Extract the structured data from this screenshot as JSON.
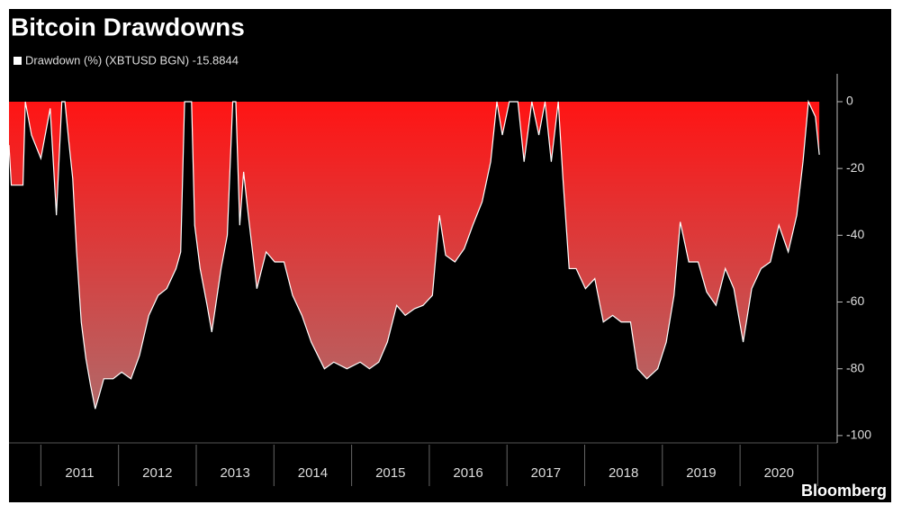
{
  "chart_data": {
    "type": "area",
    "title": "Bitcoin Drawdowns",
    "source": "Bloomberg",
    "categories": [
      "2011",
      "2012",
      "2013",
      "2014",
      "2015",
      "2016",
      "2017",
      "2018",
      "2019",
      "2020"
    ],
    "xlim": [
      2010.59,
      2021.25
    ],
    "xticks": [
      2011,
      2012,
      2013,
      2014,
      2015,
      2016,
      2017,
      2018,
      2019,
      2020,
      2021
    ],
    "ylim": [
      -103,
      8
    ],
    "yticks": [
      0,
      -20,
      -40,
      -60,
      -80,
      -100
    ],
    "x": [
      2010.59,
      2010.62,
      2010.77,
      2010.8,
      2010.88,
      2011.0,
      2011.12,
      2011.2,
      2011.27,
      2011.31,
      2011.36,
      2011.41,
      2011.46,
      2011.52,
      2011.58,
      2011.64,
      2011.7,
      2011.75,
      2011.81,
      2011.93,
      2012.04,
      2012.16,
      2012.27,
      2012.39,
      2012.51,
      2012.62,
      2012.74,
      2012.8,
      2012.85,
      2012.94,
      2012.98,
      2013.05,
      2013.14,
      2013.2,
      2013.32,
      2013.4,
      2013.47,
      2013.51,
      2013.56,
      2013.61,
      2013.67,
      2013.78,
      2013.9,
      2014.01,
      2014.13,
      2014.24,
      2014.36,
      2014.48,
      2014.65,
      2014.77,
      2014.94,
      2015.11,
      2015.23,
      2015.35,
      2015.46,
      2015.58,
      2015.69,
      2015.81,
      2015.92,
      2016.04,
      2016.13,
      2016.21,
      2016.33,
      2016.45,
      2016.56,
      2016.68,
      2016.79,
      2016.87,
      2016.94,
      2017.03,
      2017.14,
      2017.22,
      2017.32,
      2017.41,
      2017.49,
      2017.57,
      2017.66,
      2017.72,
      2017.8,
      2017.89,
      2018.01,
      2018.13,
      2018.24,
      2018.36,
      2018.47,
      2018.59,
      2018.68,
      2018.8,
      2018.94,
      2019.05,
      2019.15,
      2019.23,
      2019.34,
      2019.46,
      2019.57,
      2019.69,
      2019.81,
      2019.92,
      2020.04,
      2020.15,
      2020.27,
      2020.39,
      2020.5,
      2020.62,
      2020.73,
      2020.81,
      2020.88,
      2020.97,
      2021.02
    ],
    "series": [
      {
        "name": "Drawdown (%) (XBTUSD BGN) -15.8844",
        "color": "#ff1414",
        "values": [
          -13,
          -25,
          -25,
          0,
          -10,
          -17,
          -2,
          -34,
          0,
          0,
          -12,
          -23,
          -45,
          -66,
          -77,
          -85,
          -92,
          -88,
          -83,
          -83,
          -81,
          -83,
          -76,
          -64,
          -58,
          -56,
          -50,
          -45,
          0,
          0,
          -37,
          -50,
          -61,
          -69,
          -50,
          -40,
          0,
          0,
          -37,
          -21,
          -34,
          -56,
          -45,
          -48,
          -48,
          -58,
          -64,
          -72,
          -80,
          -78,
          -80,
          -78,
          -80,
          -78,
          -72,
          -61,
          -64,
          -62,
          -61,
          -58,
          -34,
          -46,
          -48,
          -44,
          -37,
          -30,
          -18,
          0,
          -10,
          0,
          0,
          -18,
          0,
          -10,
          0,
          -18,
          0,
          -23,
          -50,
          -50,
          -56,
          -53,
          -66,
          -64,
          -66,
          -66,
          -80,
          -83,
          -80,
          -72,
          -58,
          -36,
          -48,
          -48,
          -57,
          -61,
          -50,
          -56,
          -72,
          -56,
          -50,
          -48,
          -37,
          -45,
          -34,
          -18,
          0,
          -4.5,
          -15.8844
        ]
      }
    ]
  }
}
